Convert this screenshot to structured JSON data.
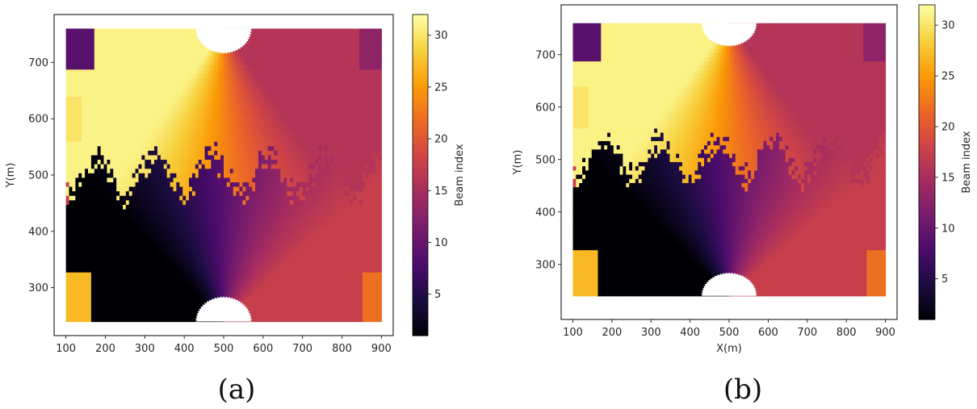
{
  "figure": {
    "panel_labels": [
      "(a)",
      "(b)"
    ]
  },
  "colors": {
    "colormap": [
      "#000004",
      "#1b0c41",
      "#4a0c6b",
      "#781c6d",
      "#a52c60",
      "#cf4446",
      "#ed6925",
      "#fb9b06",
      "#f7d13d",
      "#fcffa4"
    ],
    "background": "#ffffff",
    "axes_edge": "#000000"
  },
  "chart_data": [
    {
      "type": "heatmap",
      "panel": "(a)",
      "title": "",
      "xlabel": "",
      "ylabel": "Y(m)",
      "xlim": [
        70,
        930
      ],
      "ylim": [
        215,
        785
      ],
      "xticks": [
        100,
        200,
        300,
        400,
        500,
        600,
        700,
        800,
        900
      ],
      "yticks": [
        300,
        400,
        500,
        600,
        700
      ],
      "grid": false,
      "colorbar": {
        "label": "Beam index",
        "range": [
          1,
          32
        ],
        "ticks": [
          5,
          10,
          15,
          20,
          25,
          30
        ]
      },
      "data_extent": {
        "x": [
          100,
          900
        ],
        "y": [
          240,
          760
        ]
      },
      "base_stations": [
        {
          "x": 500,
          "y": 760
        },
        {
          "x": 500,
          "y": 240
        }
      ],
      "regions": [
        {
          "name": "upper fan",
          "beam_range": [
            16,
            31
          ]
        },
        {
          "name": "lower fan",
          "beam_range": [
            1,
            17
          ]
        },
        {
          "name": "top-left corner",
          "beam_index": 9
        },
        {
          "name": "top-right corner",
          "beam_index": 13
        },
        {
          "name": "bottom-left corner",
          "beam_index": 27
        },
        {
          "name": "bottom-right corner",
          "beam_index": 22
        }
      ]
    },
    {
      "type": "heatmap",
      "panel": "(b)",
      "title": "",
      "xlabel": "X(m)",
      "ylabel": "Y(m)",
      "xlim": [
        70,
        930
      ],
      "ylim": [
        195,
        795
      ],
      "xticks": [
        100,
        200,
        300,
        400,
        500,
        600,
        700,
        800,
        900
      ],
      "yticks": [
        300,
        400,
        500,
        600,
        700
      ],
      "grid": false,
      "colorbar": {
        "label": "Beam index",
        "range": [
          1,
          32
        ],
        "ticks": [
          5,
          10,
          15,
          20,
          25,
          30
        ]
      },
      "data_extent": {
        "x": [
          100,
          900
        ],
        "y": [
          240,
          760
        ]
      },
      "base_stations": [
        {
          "x": 500,
          "y": 760
        },
        {
          "x": 500,
          "y": 240
        }
      ],
      "regions": [
        {
          "name": "upper fan",
          "beam_range": [
            16,
            31
          ]
        },
        {
          "name": "lower fan",
          "beam_range": [
            1,
            17
          ]
        },
        {
          "name": "top-left corner",
          "beam_index": 9
        },
        {
          "name": "top-right corner",
          "beam_index": 13
        },
        {
          "name": "bottom-left corner",
          "beam_index": 27
        },
        {
          "name": "bottom-right corner",
          "beam_index": 22
        }
      ]
    }
  ]
}
